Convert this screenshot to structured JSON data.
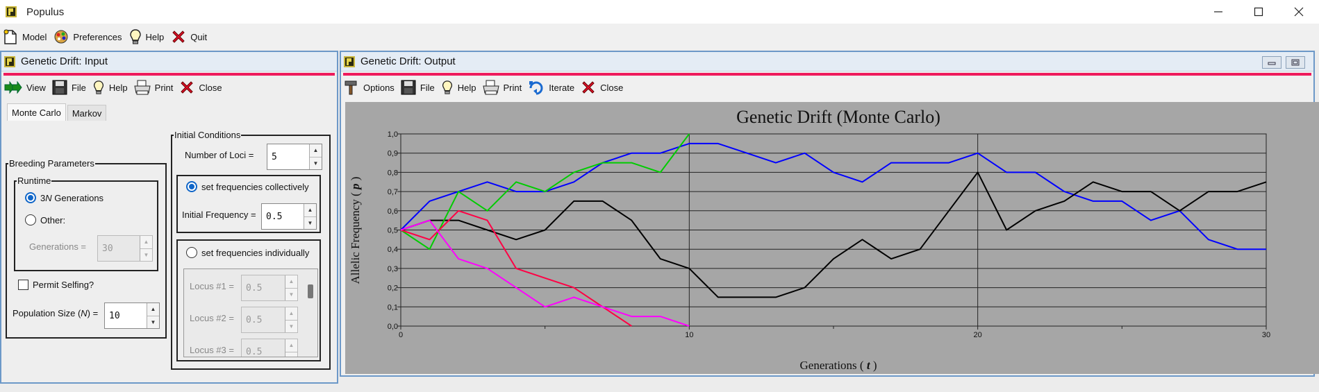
{
  "app": {
    "title": "Populus",
    "menu": [
      {
        "label": "Model",
        "icon": "model-icon"
      },
      {
        "label": "Preferences",
        "icon": "preferences-icon"
      },
      {
        "label": "Help",
        "icon": "lightbulb-icon"
      },
      {
        "label": "Quit",
        "icon": "close-x-icon"
      }
    ]
  },
  "input_window": {
    "title": "Genetic Drift: Input",
    "toolbar": {
      "view": "View",
      "file": "File",
      "help": "Help",
      "print": "Print",
      "close": "Close"
    },
    "tabs": [
      {
        "label": "Monte Carlo",
        "active": true
      },
      {
        "label": "Markov",
        "active": false
      }
    ],
    "breeding": {
      "legend": "Breeding Parameters",
      "runtime_legend": "Runtime",
      "option_3n_prefix": "3",
      "option_3n_italic": "N",
      "option_3n_suffix": " Generations",
      "option_other": "Other:",
      "generations_label": "Generations =",
      "generations_value": "30",
      "permit_selfing": "Permit Selfing?",
      "pop_size_prefix": "Population Size (",
      "pop_size_italic": "N",
      "pop_size_suffix": ") =",
      "pop_size_value": "10"
    },
    "initial": {
      "legend": "Initial Conditions",
      "loci_label": "Number of Loci =",
      "loci_value": "5",
      "collective_label": "set frequencies collectively",
      "initial_freq_label": "Initial Frequency =",
      "initial_freq_value": "0.5",
      "individual_label": "set frequencies individually",
      "loci": [
        {
          "label": "Locus #1 =",
          "value": "0.5"
        },
        {
          "label": "Locus #2 =",
          "value": "0.5"
        },
        {
          "label": "Locus #3 =",
          "value": "0.5"
        }
      ]
    }
  },
  "output_window": {
    "title": "Genetic Drift: Output",
    "toolbar": {
      "options": "Options",
      "file": "File",
      "help": "Help",
      "print": "Print",
      "iterate": "Iterate",
      "close": "Close"
    }
  },
  "chart_data": {
    "type": "line",
    "title": "Genetic Drift (Monte Carlo)",
    "xlabel_prefix": "Generations ( ",
    "xlabel_var": "t",
    "xlabel_suffix": " )",
    "ylabel_prefix": "Allelic Frequency ( ",
    "ylabel_var": "p",
    "ylabel_suffix": " )",
    "xlim": [
      0,
      30
    ],
    "ylim": [
      0,
      1
    ],
    "x_ticks": [
      0,
      10,
      20,
      30
    ],
    "y_ticks": [
      "0,0",
      "0,1",
      "0,2",
      "0,3",
      "0,4",
      "0,5",
      "0,6",
      "0,7",
      "0,8",
      "0,9",
      "1,0"
    ],
    "grid": true,
    "series": [
      {
        "color": "#0000ff",
        "x": [
          0,
          1,
          2,
          3,
          4,
          5,
          6,
          7,
          8,
          9,
          10,
          11,
          12,
          13,
          14,
          15,
          16,
          17,
          18,
          19,
          20,
          21,
          22,
          23,
          24,
          25,
          26,
          27,
          28,
          29,
          30
        ],
        "y": [
          0.5,
          0.65,
          0.7,
          0.75,
          0.7,
          0.7,
          0.75,
          0.85,
          0.9,
          0.9,
          0.95,
          0.95,
          0.9,
          0.85,
          0.9,
          0.8,
          0.75,
          0.85,
          0.85,
          0.85,
          0.9,
          0.8,
          0.8,
          0.7,
          0.65,
          0.65,
          0.55,
          0.6,
          0.45,
          0.4,
          0.4
        ]
      },
      {
        "color": "#000000",
        "x": [
          0,
          1,
          2,
          3,
          4,
          5,
          6,
          7,
          8,
          9,
          10,
          11,
          12,
          13,
          14,
          15,
          16,
          17,
          18,
          19,
          20,
          21,
          22,
          23,
          24,
          25,
          26,
          27,
          28,
          29,
          30
        ],
        "y": [
          0.5,
          0.55,
          0.55,
          0.5,
          0.45,
          0.5,
          0.65,
          0.65,
          0.55,
          0.35,
          0.3,
          0.15,
          0.15,
          0.15,
          0.2,
          0.35,
          0.45,
          0.35,
          0.4,
          0.6,
          0.8,
          0.5,
          0.6,
          0.65,
          0.75,
          0.7,
          0.7,
          0.6,
          0.7,
          0.7,
          0.75
        ]
      },
      {
        "color": "#00cc00",
        "x": [
          0,
          1,
          2,
          3,
          4,
          5,
          6,
          7,
          8,
          9,
          10
        ],
        "y": [
          0.5,
          0.4,
          0.7,
          0.6,
          0.75,
          0.7,
          0.8,
          0.85,
          0.85,
          0.8,
          1.0
        ]
      },
      {
        "color": "#ff0044",
        "x": [
          0,
          1,
          2,
          3,
          4,
          5,
          6,
          7,
          8
        ],
        "y": [
          0.5,
          0.45,
          0.6,
          0.55,
          0.3,
          0.25,
          0.2,
          0.1,
          0.0
        ]
      },
      {
        "color": "#ff00ff",
        "x": [
          0,
          1,
          2,
          3,
          4,
          5,
          6,
          7,
          8,
          9,
          10
        ],
        "y": [
          0.5,
          0.55,
          0.35,
          0.3,
          0.2,
          0.1,
          0.15,
          0.1,
          0.05,
          0.05,
          0.0
        ]
      }
    ]
  }
}
